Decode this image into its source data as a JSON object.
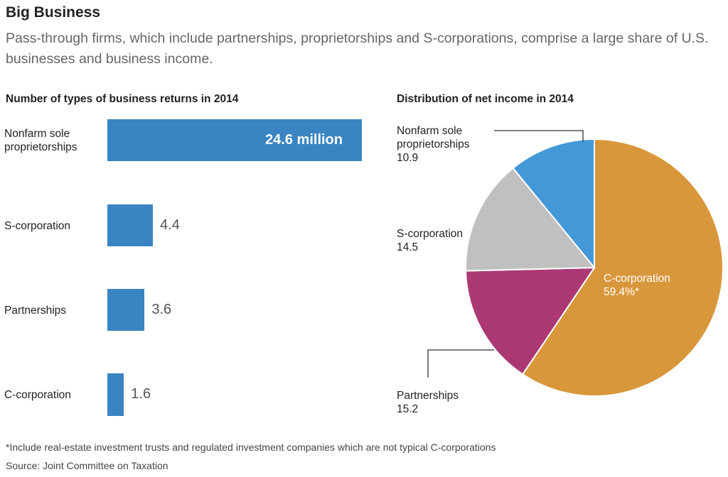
{
  "header": {
    "title": "Big Business",
    "subtitle": "Pass-through firms, which include partnerships, proprietorships and S-corporations, comprise a large share of U.S. businesses and business income."
  },
  "footer": {
    "footnote": "*Include real-estate investment trusts and regulated investment companies which are not typical C-corporations",
    "source": "Source: Joint Committee on Taxation"
  },
  "chart_data": [
    {
      "type": "bar",
      "orientation": "horizontal",
      "title": "Number of types of business returns in 2014",
      "categories": [
        "Nonfarm sole proprietorships",
        "S-corporation",
        "Partnerships",
        "C-corporation"
      ],
      "category_lines": [
        [
          "Nonfarm sole",
          "proprietorships"
        ],
        [
          "S-corporation"
        ],
        [
          "Partnerships"
        ],
        [
          "C-corporation"
        ]
      ],
      "values": [
        24.6,
        4.4,
        3.6,
        1.6
      ],
      "value_labels": [
        "24.6 million",
        "4.4",
        "3.6",
        "1.6"
      ],
      "units": "million",
      "color": "#3a84c1",
      "grid": false
    },
    {
      "type": "pie",
      "title": "Distribution of net income in 2014",
      "slices": [
        {
          "label_lines": [
            "C-corporation",
            "59.4%*"
          ],
          "value": 59.4,
          "color": "#d9973b"
        },
        {
          "label_lines": [
            "Partnerships",
            "15.2"
          ],
          "value": 15.2,
          "color": "#ab3873"
        },
        {
          "label_lines": [
            "S-corporation",
            "14.5"
          ],
          "value": 14.5,
          "color": "#c0c0c0"
        },
        {
          "label_lines": [
            "Nonfarm sole",
            "proprietorships",
            "10.9"
          ],
          "value": 10.9,
          "color": "#4398d8"
        }
      ],
      "units": "percent"
    }
  ]
}
